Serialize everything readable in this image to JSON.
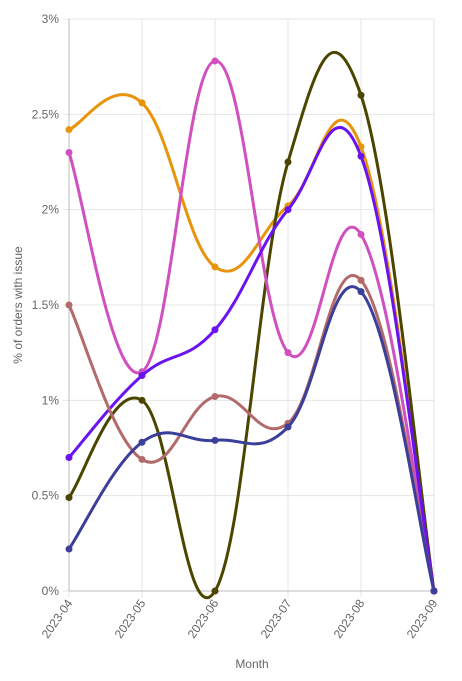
{
  "chart_data": {
    "type": "line",
    "title": "",
    "xlabel": "Month",
    "ylabel": "% of orders with issue",
    "categories": [
      "2023-04",
      "2023-05",
      "2023-06",
      "2023-07",
      "2023-08",
      "2023-09"
    ],
    "ylim": [
      0,
      3
    ],
    "yticks": [
      0,
      0.5,
      1,
      1.5,
      2,
      2.5,
      3
    ],
    "ytick_labels": [
      "0%",
      "0.5%",
      "1%",
      "1.5%",
      "2%",
      "2.5%",
      "3%"
    ],
    "grid": true,
    "legend": "none",
    "series": [
      {
        "color": "#e8940a",
        "values": [
          2.42,
          2.56,
          1.7,
          2.02,
          2.33,
          0
        ]
      },
      {
        "color": "#4b4500",
        "values": [
          0.49,
          1.0,
          0,
          2.25,
          2.6,
          0
        ]
      },
      {
        "color": "#d050c0",
        "values": [
          2.3,
          1.15,
          2.78,
          1.25,
          1.87,
          0
        ]
      },
      {
        "color": "#6a12f0",
        "values": [
          0.7,
          1.13,
          1.37,
          2.0,
          2.28,
          0
        ]
      },
      {
        "color": "#b26a6a",
        "values": [
          1.5,
          0.69,
          1.02,
          0.88,
          1.63,
          0
        ]
      },
      {
        "color": "#3b3f9a",
        "values": [
          0.22,
          0.78,
          0.79,
          0.86,
          1.57,
          0
        ]
      }
    ]
  }
}
